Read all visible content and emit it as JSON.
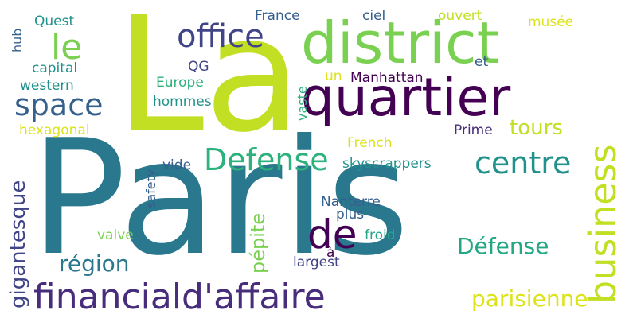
{
  "colors": {
    "background": "#ffffff",
    "teal": "#2a788e",
    "lime": "#c2df23",
    "purple": "#440154",
    "green": "#7ad151",
    "aqua": "#22a884",
    "indigo": "#414487",
    "slate": "#355f8d",
    "yellow": "#dce319",
    "midteal": "#21918c",
    "sea": "#2db27d"
  },
  "words": {
    "paris": "Paris",
    "la": "La",
    "district": "district",
    "quartier": "quartier",
    "office": "office",
    "le": "le",
    "space": "space",
    "business": "business",
    "defense": "Defense",
    "centre": "centre",
    "de": "de",
    "financiald": "financiald'affaire",
    "parisienne": "parisienne",
    "defense_accent": "Défense",
    "region": "région",
    "gigantesque": "gigantesque",
    "pepite": "pépite",
    "tours": "tours",
    "manhattan": "Manhattan",
    "quest": "Quest",
    "hub": "hub",
    "capital": "capital",
    "western": "western",
    "hexagonal": "hexagonal",
    "qg": "QG",
    "europe": "Europe",
    "hommes": "hommes",
    "france": "France",
    "ciel": "ciel",
    "ouvert": "ouvert",
    "musee": "musée",
    "et": "et",
    "un": "un",
    "vaste": "vaste",
    "prime": "Prime",
    "french": "French",
    "skyscrappers": "skyscrappers",
    "vide": "vide",
    "safety": "safety",
    "nanterre": "Nanterre",
    "plus": "plus",
    "froid": "froid",
    "valve": "valve",
    "a": "à",
    "largest": "largest"
  }
}
